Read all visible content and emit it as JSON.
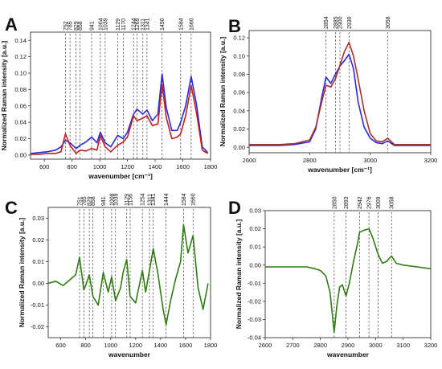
{
  "chart_data": [
    {
      "panel": "A",
      "type": "line",
      "xlabel": "wavenumber [cm⁻¹]",
      "ylabel": "Normalized Raman intensity [a.u.]",
      "xlim": [
        500,
        1800
      ],
      "ylim": [
        -0.005,
        0.15
      ],
      "xticks": [
        "600",
        "800",
        "1000",
        "1200",
        "1400",
        "1600",
        "1800"
      ],
      "yticks": [
        "0.00",
        "0.02",
        "0.04",
        "0.06",
        "0.08",
        "0.10",
        "0.12",
        "0.14"
      ],
      "peak_lines": [
        752,
        785,
        829,
        858,
        941,
        1004,
        1039,
        1129,
        1170,
        1244,
        1269,
        1311,
        1341,
        1450,
        1584,
        1660
      ],
      "peak_labels": [
        "752",
        "785",
        "829",
        "858",
        "941",
        "1004",
        "1039",
        "1129",
        "1170",
        "1244",
        "1269",
        "1311",
        "1341",
        "1450",
        "1584",
        "1660"
      ],
      "series": [
        {
          "color": "#2a2ad6",
          "x": [
            500,
            560,
            620,
            680,
            720,
            752,
            785,
            829,
            858,
            900,
            941,
            980,
            1004,
            1039,
            1080,
            1129,
            1170,
            1200,
            1244,
            1269,
            1311,
            1341,
            1380,
            1420,
            1450,
            1480,
            1520,
            1560,
            1584,
            1620,
            1660,
            1700,
            1740,
            1780
          ],
          "y": [
            0.002,
            0.003,
            0.004,
            0.006,
            0.01,
            0.018,
            0.015,
            0.008,
            0.012,
            0.016,
            0.022,
            0.015,
            0.028,
            0.015,
            0.01,
            0.024,
            0.02,
            0.028,
            0.05,
            0.056,
            0.05,
            0.055,
            0.042,
            0.05,
            0.099,
            0.058,
            0.03,
            0.03,
            0.04,
            0.06,
            0.096,
            0.06,
            0.01,
            0.003
          ]
        },
        {
          "color": "#c0201e",
          "x": [
            500,
            560,
            620,
            680,
            720,
            752,
            785,
            829,
            858,
            900,
            941,
            980,
            1004,
            1039,
            1080,
            1129,
            1170,
            1200,
            1244,
            1269,
            1311,
            1341,
            1380,
            1420,
            1450,
            1480,
            1520,
            1560,
            1584,
            1620,
            1660,
            1700,
            1740,
            1780
          ],
          "y": [
            0.001,
            0.001,
            0.002,
            0.002,
            0.004,
            0.026,
            0.012,
            0.002,
            0.006,
            0.005,
            0.008,
            0.006,
            0.024,
            0.01,
            0.004,
            0.012,
            0.016,
            0.022,
            0.048,
            0.042,
            0.045,
            0.048,
            0.036,
            0.038,
            0.086,
            0.046,
            0.02,
            0.022,
            0.026,
            0.048,
            0.085,
            0.05,
            0.006,
            0.002
          ]
        }
      ]
    },
    {
      "panel": "B",
      "type": "line",
      "xlabel": "wavenumber [cm⁻¹]",
      "ylabel": "Normalized Raman intensity [a.u.]",
      "xlim": [
        2600,
        3200
      ],
      "ylim": [
        -0.006,
        0.128
      ],
      "xticks": [
        "2600",
        "2800",
        "3000",
        "3200"
      ],
      "yticks": [
        "0.00",
        "0.02",
        "0.04",
        "0.06",
        "0.08",
        "0.10",
        "0.12"
      ],
      "peak_lines": [
        2854,
        2885,
        2900,
        2930,
        3058
      ],
      "peak_labels": [
        "2854",
        "2885",
        "2900",
        "2930",
        "3058"
      ],
      "series": [
        {
          "color": "#2a2ad6",
          "x": [
            2600,
            2650,
            2700,
            2750,
            2800,
            2820,
            2840,
            2854,
            2870,
            2885,
            2900,
            2915,
            2930,
            2945,
            2960,
            2980,
            3000,
            3020,
            3040,
            3058,
            3080,
            3120,
            3160,
            3200
          ],
          "y": [
            0.002,
            0.002,
            0.002,
            0.003,
            0.006,
            0.02,
            0.055,
            0.077,
            0.07,
            0.08,
            0.089,
            0.095,
            0.102,
            0.086,
            0.05,
            0.022,
            0.01,
            0.005,
            0.004,
            0.007,
            0.002,
            0.002,
            0.002,
            0.002
          ]
        },
        {
          "color": "#a8322a",
          "x": [
            2600,
            2650,
            2700,
            2750,
            2800,
            2820,
            2840,
            2854,
            2870,
            2885,
            2900,
            2915,
            2930,
            2945,
            2960,
            2980,
            3000,
            3020,
            3040,
            3058,
            3080,
            3120,
            3160,
            3200
          ],
          "y": [
            0.003,
            0.003,
            0.003,
            0.004,
            0.008,
            0.022,
            0.05,
            0.068,
            0.066,
            0.075,
            0.09,
            0.105,
            0.115,
            0.1,
            0.075,
            0.04,
            0.015,
            0.007,
            0.006,
            0.01,
            0.003,
            0.003,
            0.003,
            0.003
          ]
        }
      ]
    },
    {
      "panel": "C",
      "type": "line",
      "xlabel": "wavenumber",
      "ylabel": "Normalized Raman intensity [a.u.]",
      "xlim": [
        500,
        1800
      ],
      "ylim": [
        -0.025,
        0.035
      ],
      "xticks": [
        "600",
        "800",
        "1000",
        "1200",
        "1400",
        "1600",
        "1800"
      ],
      "yticks": [
        "-0.02",
        "-0.01",
        "0.00",
        "0.01",
        "0.02",
        "0.03"
      ],
      "peak_lines": [
        751,
        785,
        829,
        858,
        941,
        1008,
        1039,
        1129,
        1156,
        1254,
        1311,
        1341,
        1444,
        1584,
        1660
      ],
      "peak_labels": [
        "751",
        "785",
        "829",
        "858",
        "941",
        "1008",
        "1039",
        "1129",
        "1156",
        "1254",
        "1311",
        "1341",
        "1444",
        "1584",
        "1660"
      ],
      "series": [
        {
          "color": "#2e7d12",
          "x": [
            500,
            560,
            620,
            680,
            720,
            751,
            785,
            800,
            829,
            858,
            900,
            941,
            980,
            1008,
            1039,
            1080,
            1100,
            1129,
            1156,
            1200,
            1254,
            1280,
            1311,
            1341,
            1380,
            1420,
            1444,
            1480,
            1520,
            1560,
            1584,
            1620,
            1660,
            1700,
            1740,
            1780
          ],
          "y": [
            0.0,
            0.001,
            -0.001,
            0.002,
            0.004,
            0.012,
            -0.003,
            -0.001,
            0.004,
            -0.006,
            -0.01,
            0.005,
            -0.004,
            0.003,
            -0.008,
            -0.002,
            0.005,
            0.011,
            -0.006,
            -0.009,
            0.006,
            -0.004,
            0.006,
            0.016,
            0.004,
            -0.012,
            -0.019,
            -0.008,
            0.002,
            0.01,
            0.027,
            0.014,
            0.022,
            -0.002,
            -0.012,
            0.0
          ]
        }
      ]
    },
    {
      "panel": "D",
      "type": "line",
      "xlabel": "wavenumber",
      "ylabel": "Normalized Raman intensity [a.u.]",
      "xlim": [
        2600,
        3200
      ],
      "ylim": [
        -0.04,
        0.03
      ],
      "xticks": [
        "2600",
        "2700",
        "2800",
        "2900",
        "3000",
        "3100",
        "3200"
      ],
      "yticks": [
        "-0.04",
        "-0.03",
        "-0.02",
        "-0.01",
        "0.00",
        "0.01",
        "0.02",
        "0.03"
      ],
      "peak_lines": [
        2850,
        2893,
        2942,
        2976,
        3009,
        3058
      ],
      "peak_labels": [
        "2850",
        "2893",
        "2942",
        "2976",
        "3009",
        "3058"
      ],
      "series": [
        {
          "color": "#2e7d12",
          "x": [
            2600,
            2650,
            2700,
            2750,
            2780,
            2800,
            2820,
            2835,
            2850,
            2860,
            2870,
            2880,
            2893,
            2905,
            2920,
            2935,
            2942,
            2955,
            2976,
            2990,
            3009,
            3025,
            3040,
            3058,
            3075,
            3100,
            3150,
            3200
          ],
          "y": [
            -0.001,
            -0.001,
            -0.001,
            -0.001,
            -0.002,
            -0.003,
            -0.006,
            -0.015,
            -0.037,
            -0.022,
            -0.012,
            -0.011,
            -0.017,
            -0.01,
            0.002,
            0.012,
            0.018,
            0.019,
            0.02,
            0.015,
            0.006,
            0.001,
            0.002,
            0.005,
            0.001,
            0.0,
            -0.001,
            -0.002
          ]
        }
      ]
    }
  ]
}
